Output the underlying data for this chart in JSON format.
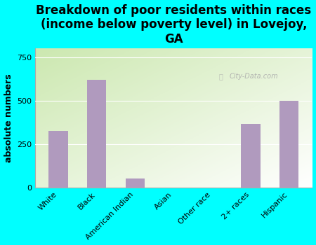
{
  "title": "Breakdown of poor residents within races\n(income below poverty level) in Lovejoy,\nGA",
  "categories": [
    "White",
    "Black",
    "American Indian",
    "Asian",
    "Other race",
    "2+ races",
    "Hispanic"
  ],
  "values": [
    325,
    620,
    50,
    0,
    0,
    365,
    500
  ],
  "bar_color": "#b09abe",
  "ylabel": "absolute numbers",
  "ylim": [
    0,
    800
  ],
  "yticks": [
    0,
    250,
    500,
    750
  ],
  "background_color": "#00ffff",
  "plot_bg_color_topleft": "#cce8b0",
  "plot_bg_color_bottomright": "#ffffff",
  "watermark": "City-Data.com",
  "title_fontsize": 12,
  "ylabel_fontsize": 9,
  "tick_fontsize": 8
}
